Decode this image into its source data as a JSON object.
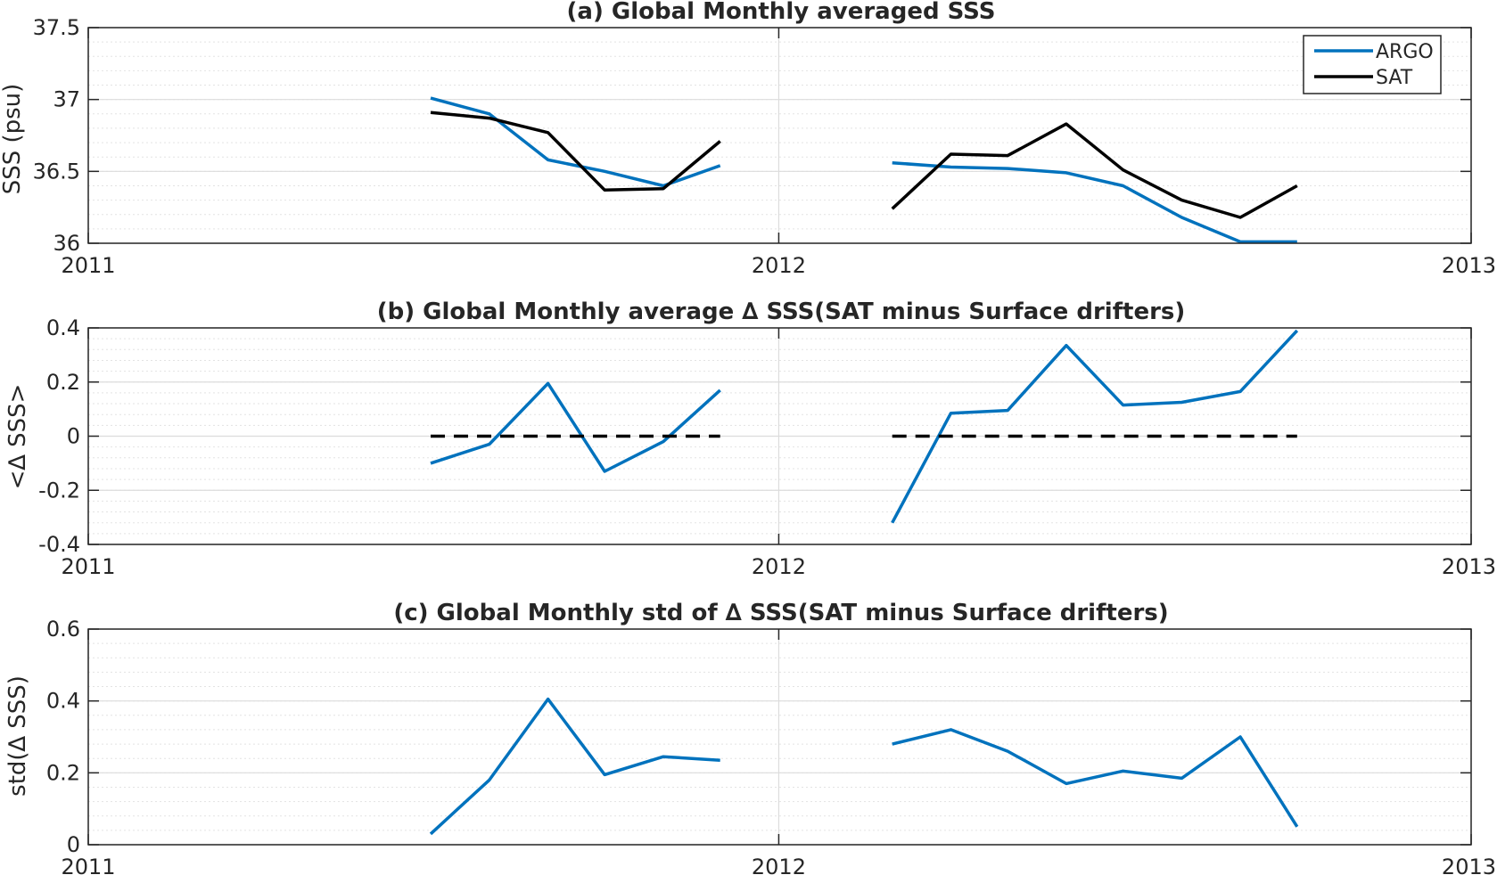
{
  "chart_data": [
    {
      "type": "line",
      "title": "(a) Global Monthly averaged SSS",
      "xlabel": "",
      "ylabel": "SSS (psu)",
      "xlim": [
        "2011",
        "2013"
      ],
      "ylim": [
        36,
        37.5
      ],
      "yticks": [
        36,
        36.5,
        37,
        37.5
      ],
      "ytick_labels": [
        "36",
        "36.5",
        "37",
        "37.5"
      ],
      "xticks": [
        "2011",
        "2012",
        "2013"
      ],
      "grid": true,
      "minor_grid": true,
      "legend": "top-right",
      "series": [
        {
          "name": "ARGO",
          "color": "#0072BD",
          "dash": false,
          "segments": [
            [
              [
                "2011-07-01",
                37.01
              ],
              [
                "2011-08-01",
                36.9
              ],
              [
                "2011-09-01",
                36.58
              ],
              [
                "2011-10-01",
                36.5
              ],
              [
                "2011-11-01",
                36.4
              ],
              [
                "2011-12-01",
                36.54
              ]
            ],
            [
              [
                "2012-03-01",
                36.56
              ],
              [
                "2012-04-01",
                36.53
              ],
              [
                "2012-05-01",
                36.52
              ],
              [
                "2012-06-01",
                36.49
              ],
              [
                "2012-07-01",
                36.4
              ],
              [
                "2012-08-01",
                36.18
              ],
              [
                "2012-09-01",
                36.01
              ],
              [
                "2012-10-01",
                36.01
              ]
            ]
          ]
        },
        {
          "name": "SAT",
          "color": "#000000",
          "dash": false,
          "segments": [
            [
              [
                "2011-07-01",
                36.91
              ],
              [
                "2011-08-01",
                36.87
              ],
              [
                "2011-09-01",
                36.77
              ],
              [
                "2011-10-01",
                36.37
              ],
              [
                "2011-11-01",
                36.38
              ],
              [
                "2011-12-01",
                36.71
              ]
            ],
            [
              [
                "2012-03-01",
                36.24
              ],
              [
                "2012-04-01",
                36.62
              ],
              [
                "2012-05-01",
                36.61
              ],
              [
                "2012-06-01",
                36.83
              ],
              [
                "2012-07-01",
                36.51
              ],
              [
                "2012-08-01",
                36.3
              ],
              [
                "2012-09-01",
                36.18
              ],
              [
                "2012-10-01",
                36.4
              ]
            ]
          ]
        }
      ]
    },
    {
      "type": "line",
      "title": "(b) Global Monthly average ∆ SSS(SAT minus Surface drifters)",
      "xlabel": "",
      "ylabel": "<∆ SSS>",
      "xlim": [
        "2011",
        "2013"
      ],
      "ylim": [
        -0.4,
        0.4
      ],
      "yticks": [
        -0.4,
        -0.2,
        0,
        0.2,
        0.4
      ],
      "ytick_labels": [
        "-0.4",
        "-0.2",
        "0",
        "0.2",
        "0.4"
      ],
      "xticks": [
        "2011",
        "2012",
        "2013"
      ],
      "grid": true,
      "minor_grid": true,
      "legend": "none",
      "series": [
        {
          "color": "#0072BD",
          "dash": false,
          "segments": [
            [
              [
                "2011-07-01",
                -0.1
              ],
              [
                "2011-08-01",
                -0.03
              ],
              [
                "2011-09-01",
                0.195
              ],
              [
                "2011-10-01",
                -0.13
              ],
              [
                "2011-11-01",
                -0.02
              ],
              [
                "2011-12-01",
                0.17
              ]
            ],
            [
              [
                "2012-03-01",
                -0.32
              ],
              [
                "2012-04-01",
                0.085
              ],
              [
                "2012-05-01",
                0.095
              ],
              [
                "2012-06-01",
                0.335
              ],
              [
                "2012-07-01",
                0.115
              ],
              [
                "2012-08-01",
                0.125
              ],
              [
                "2012-09-01",
                0.165
              ],
              [
                "2012-10-01",
                0.39
              ]
            ]
          ]
        },
        {
          "color": "#000000",
          "dash": true,
          "segments": [
            [
              [
                "2011-07-01",
                0
              ],
              [
                "2011-12-01",
                0
              ]
            ],
            [
              [
                "2012-03-01",
                0
              ],
              [
                "2012-10-01",
                0
              ]
            ]
          ]
        }
      ]
    },
    {
      "type": "line",
      "title": "(c) Global Monthly std of ∆ SSS(SAT minus Surface drifters)",
      "xlabel": "",
      "ylabel": "std(∆ SSS)",
      "xlim": [
        "2011",
        "2013"
      ],
      "ylim": [
        0,
        0.6
      ],
      "yticks": [
        0,
        0.2,
        0.4,
        0.6
      ],
      "ytick_labels": [
        "0",
        "0.2",
        "0.4",
        "0.6"
      ],
      "xticks": [
        "2011",
        "2012",
        "2013"
      ],
      "grid": true,
      "minor_grid": true,
      "legend": "none",
      "series": [
        {
          "color": "#0072BD",
          "dash": false,
          "segments": [
            [
              [
                "2011-07-01",
                0.03
              ],
              [
                "2011-08-01",
                0.18
              ],
              [
                "2011-09-01",
                0.405
              ],
              [
                "2011-10-01",
                0.195
              ],
              [
                "2011-11-01",
                0.245
              ],
              [
                "2011-12-01",
                0.235
              ]
            ],
            [
              [
                "2012-03-01",
                0.28
              ],
              [
                "2012-04-01",
                0.32
              ],
              [
                "2012-05-01",
                0.26
              ],
              [
                "2012-06-01",
                0.17
              ],
              [
                "2012-07-01",
                0.205
              ],
              [
                "2012-08-01",
                0.185
              ],
              [
                "2012-09-01",
                0.3
              ],
              [
                "2012-10-01",
                0.05
              ]
            ]
          ]
        }
      ]
    }
  ]
}
